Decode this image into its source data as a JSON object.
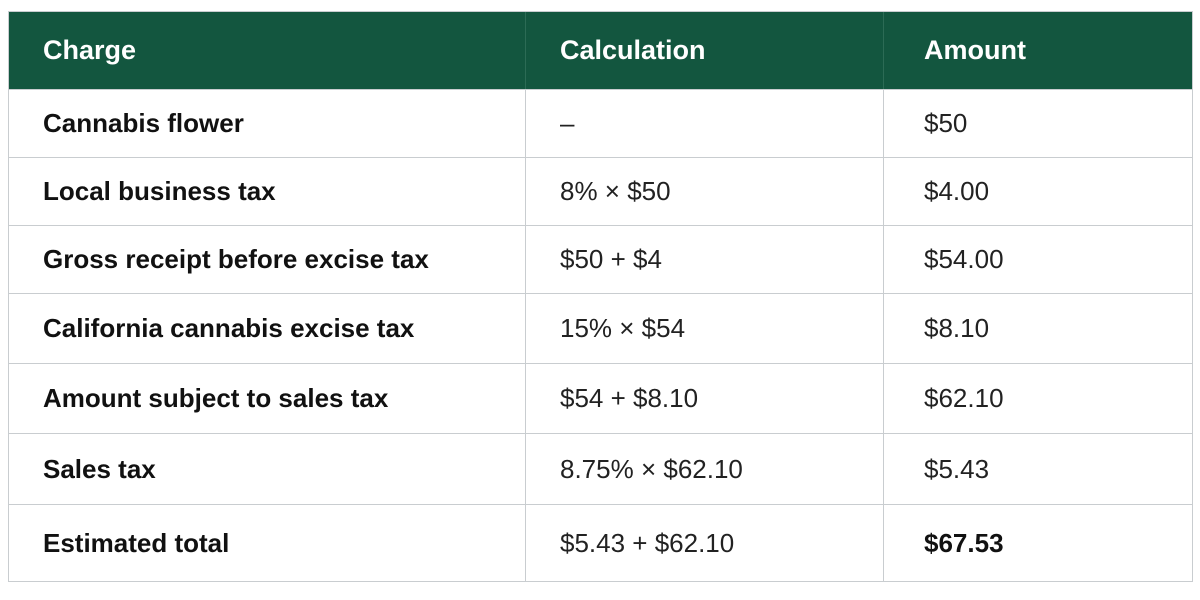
{
  "table": {
    "headers": [
      "Charge",
      "Calculation",
      "Amount"
    ],
    "rows": [
      {
        "charge": "Cannabis flower",
        "calculation": "–",
        "amount": "$50"
      },
      {
        "charge": "Local business tax",
        "calculation": "8% × $50",
        "amount": "$4.00"
      },
      {
        "charge": "Gross receipt before excise tax",
        "calculation": "$50 + $4",
        "amount": "$54.00"
      },
      {
        "charge": "California cannabis excise tax",
        "calculation": "15% × $54",
        "amount": "$8.10"
      },
      {
        "charge": "Amount subject to sales tax",
        "calculation": "$54 + $8.10",
        "amount": "$62.10"
      },
      {
        "charge": "Sales tax",
        "calculation": "8.75% × $62.10",
        "amount": "$5.43"
      },
      {
        "charge": "Estimated total",
        "calculation": "$5.43 + $62.10",
        "amount": "$67.53"
      }
    ]
  },
  "colors": {
    "header_background": "#13563f",
    "header_text": "#ffffff",
    "border": "#c9cdd0"
  }
}
